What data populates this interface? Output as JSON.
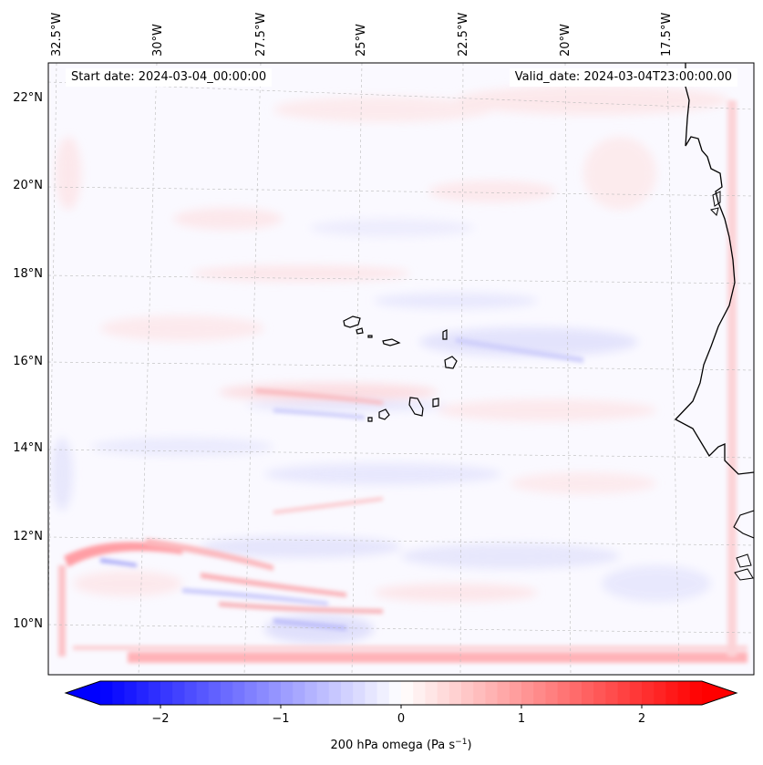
{
  "map": {
    "annotations": {
      "start_date": "Start date: 2024-03-04_00:00:00",
      "valid_date": "Valid_date: 2024-03-04T23:00:00.00"
    },
    "lon_labels": [
      "32.5°W",
      "30°W",
      "27.5°W",
      "25°W",
      "22.5°W",
      "20°W",
      "17.5°W"
    ],
    "lat_labels": [
      "22°N",
      "20°N",
      "18°N",
      "16°N",
      "14°N",
      "12°N",
      "10°N"
    ],
    "field": "200 hPa omega",
    "colormap": "bwr",
    "features": [
      "Cape Verde islands",
      "West African coastline"
    ]
  },
  "colorbar": {
    "label_main": "200 hPa omega (Pa s",
    "label_exp": "−1",
    "label_close": ")",
    "ticks": [
      "−2",
      "−1",
      "0",
      "1",
      "2"
    ],
    "tick_values": [
      -2,
      -1,
      0,
      1,
      2
    ],
    "range": [
      -2.5,
      2.5
    ],
    "extend": "both",
    "min_color": "#0000ff",
    "mid_color": "#ffffff",
    "max_color": "#ff0000"
  }
}
